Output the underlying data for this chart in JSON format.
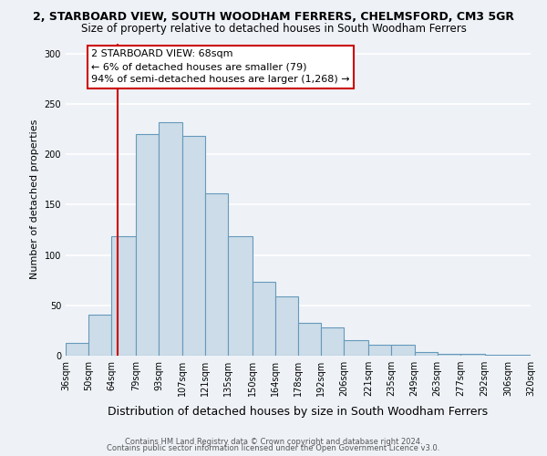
{
  "title1": "2, STARBOARD VIEW, SOUTH WOODHAM FERRERS, CHELMSFORD, CM3 5GR",
  "title2": "Size of property relative to detached houses in South Woodham Ferrers",
  "xlabel": "Distribution of detached houses by size in South Woodham Ferrers",
  "ylabel": "Number of detached properties",
  "bin_labels": [
    "36sqm",
    "50sqm",
    "64sqm",
    "79sqm",
    "93sqm",
    "107sqm",
    "121sqm",
    "135sqm",
    "150sqm",
    "164sqm",
    "178sqm",
    "192sqm",
    "206sqm",
    "221sqm",
    "235sqm",
    "249sqm",
    "263sqm",
    "277sqm",
    "292sqm",
    "306sqm",
    "320sqm"
  ],
  "bin_edges": [
    36,
    50,
    64,
    79,
    93,
    107,
    121,
    135,
    150,
    164,
    178,
    192,
    206,
    221,
    235,
    249,
    263,
    277,
    292,
    306,
    320
  ],
  "bar_heights": [
    13,
    41,
    119,
    220,
    232,
    218,
    161,
    119,
    73,
    59,
    33,
    28,
    15,
    11,
    11,
    4,
    2,
    2,
    1,
    1
  ],
  "bar_color": "#ccdce8",
  "bar_edge_color": "#6699bb",
  "property_size": 68,
  "vline_color": "#cc0000",
  "annotation_line1": "2 STARBOARD VIEW: 68sqm",
  "annotation_line2": "← 6% of detached houses are smaller (79)",
  "annotation_line3": "94% of semi-detached houses are larger (1,268) →",
  "annotation_box_color": "#ffffff",
  "annotation_box_edge": "#cc0000",
  "ylim": [
    0,
    310
  ],
  "yticks": [
    0,
    50,
    100,
    150,
    200,
    250,
    300
  ],
  "footer1": "Contains HM Land Registry data © Crown copyright and database right 2024.",
  "footer2": "Contains public sector information licensed under the Open Government Licence v3.0.",
  "background_color": "#eef2f7",
  "grid_color": "#ffffff",
  "title1_fontsize": 9,
  "title2_fontsize": 8.5,
  "ylabel_fontsize": 8,
  "xlabel_fontsize": 9,
  "tick_fontsize": 7,
  "annotation_fontsize": 8,
  "footer_fontsize": 6
}
